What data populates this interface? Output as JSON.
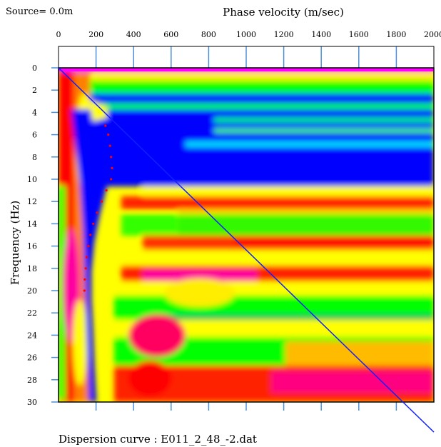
{
  "source_label": "Source= 0.0m",
  "footer_label": "Dispersion curve : E011_2_48_-2.dat",
  "chart_data": {
    "type": "heatmap",
    "title": "Phase velocity (m/sec)",
    "xlabel": "Phase velocity (m/sec)",
    "ylabel": "Frequency (Hz)",
    "xlim": [
      0,
      2000
    ],
    "ylim": [
      0,
      30
    ],
    "x_ticks": [
      0,
      200,
      400,
      600,
      800,
      1000,
      1200,
      1400,
      1600,
      1800,
      2000
    ],
    "y_ticks": [
      0,
      2,
      4,
      6,
      8,
      10,
      12,
      14,
      16,
      18,
      20,
      22,
      24,
      26,
      28,
      30
    ],
    "colormap": [
      "#0000ff",
      "#00ff00",
      "#ffff00",
      "#ff0000",
      "#ff00ff"
    ],
    "blue_line": {
      "x": [
        0,
        2000
      ],
      "y": [
        0,
        32.7
      ]
    },
    "dispersion_points": {
      "x": [
        250,
        265,
        275,
        280,
        285,
        280,
        255,
        230,
        205,
        185,
        170,
        160,
        150,
        145,
        140,
        138
      ],
      "y": [
        5.2,
        6,
        7,
        8,
        9,
        10,
        11,
        12,
        13,
        14,
        15,
        16,
        17,
        18,
        19,
        20
      ],
      "color": "#ff0000"
    },
    "grid": true
  }
}
